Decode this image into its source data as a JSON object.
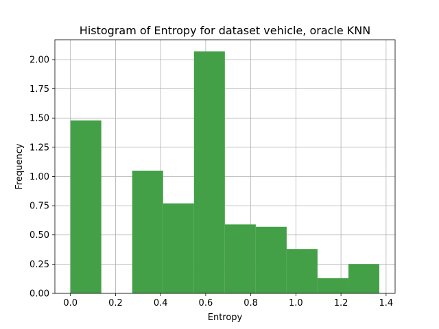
{
  "chart_data": {
    "type": "bar",
    "title": "Histogram of Entropy for dataset vehicle, oracle KNN",
    "xlabel": "Entropy",
    "ylabel": "Frequency",
    "xlim": [
      -0.069,
      1.44
    ],
    "ylim": [
      0,
      2.17
    ],
    "xticks": [
      "0.0",
      "0.2",
      "0.4",
      "0.6",
      "0.8",
      "1.0",
      "1.2",
      "1.4"
    ],
    "yticks": [
      "0.00",
      "0.25",
      "0.50",
      "0.75",
      "1.00",
      "1.25",
      "1.50",
      "1.75",
      "2.00"
    ],
    "grid": true,
    "bar_color": "#43a047",
    "bins": [
      {
        "x0": 0.0,
        "x1": 0.137,
        "value": 1.48
      },
      {
        "x0": 0.137,
        "x1": 0.274,
        "value": 0.0
      },
      {
        "x0": 0.274,
        "x1": 0.411,
        "value": 1.05
      },
      {
        "x0": 0.411,
        "x1": 0.548,
        "value": 0.77
      },
      {
        "x0": 0.548,
        "x1": 0.685,
        "value": 2.07
      },
      {
        "x0": 0.685,
        "x1": 0.822,
        "value": 0.59
      },
      {
        "x0": 0.822,
        "x1": 0.959,
        "value": 0.57
      },
      {
        "x0": 0.959,
        "x1": 1.096,
        "value": 0.38
      },
      {
        "x0": 1.096,
        "x1": 1.233,
        "value": 0.13
      },
      {
        "x0": 1.233,
        "x1": 1.37,
        "value": 0.25
      }
    ]
  }
}
